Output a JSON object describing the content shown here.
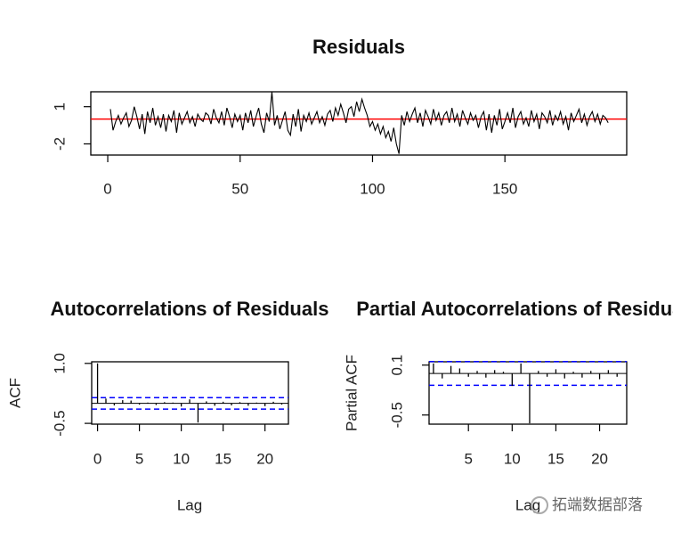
{
  "chart_data": [
    {
      "type": "line",
      "title": "Residuals",
      "color": "#000000",
      "hline": 0,
      "hline_color": "#ff0000",
      "x": [
        1,
        2,
        3,
        4,
        5,
        6,
        7,
        8,
        9,
        10,
        11,
        12,
        13,
        14,
        15,
        16,
        17,
        18,
        19,
        20,
        21,
        22,
        23,
        24,
        25,
        26,
        27,
        28,
        29,
        30,
        31,
        32,
        33,
        34,
        35,
        36,
        37,
        38,
        39,
        40,
        41,
        42,
        43,
        44,
        45,
        46,
        47,
        48,
        49,
        50,
        51,
        52,
        53,
        54,
        55,
        56,
        57,
        58,
        59,
        60,
        61,
        62,
        63,
        64,
        65,
        66,
        67,
        68,
        69,
        70,
        71,
        72,
        73,
        74,
        75,
        76,
        77,
        78,
        79,
        80,
        81,
        82,
        83,
        84,
        85,
        86,
        87,
        88,
        89,
        90,
        91,
        92,
        93,
        94,
        95,
        96,
        97,
        98,
        99,
        100,
        101,
        102,
        103,
        104,
        105,
        106,
        107,
        108,
        109,
        110,
        111,
        112,
        113,
        114,
        115,
        116,
        117,
        118,
        119,
        120,
        121,
        122,
        123,
        124,
        125,
        126,
        127,
        128,
        129,
        130,
        131,
        132,
        133,
        134,
        135,
        136,
        137,
        138,
        139,
        140,
        141,
        142,
        143,
        144,
        145,
        146,
        147,
        148,
        149,
        150,
        151,
        152,
        153,
        154,
        155,
        156,
        157,
        158,
        159,
        160,
        161,
        162,
        163,
        164,
        165,
        166,
        167,
        168,
        169,
        170,
        171,
        172,
        173,
        174,
        175,
        176,
        177,
        178,
        179,
        180,
        181,
        182,
        183,
        184,
        185,
        186,
        187,
        188,
        189
      ],
      "values": [
        0.8,
        -0.9,
        -0.2,
        0.3,
        -0.4,
        0.1,
        0.5,
        -0.6,
        -0.1,
        1.0,
        0.2,
        -0.8,
        0.4,
        -1.2,
        0.6,
        -0.3,
        0.9,
        -0.5,
        0.2,
        -0.7,
        0.4,
        -1.0,
        0.3,
        -0.2,
        0.7,
        -1.1,
        0.5,
        -0.4,
        0.1,
        0.6,
        -0.3,
        0.2,
        -0.6,
        0.4,
        0.0,
        -0.2,
        0.5,
        0.3,
        -0.4,
        0.8,
        0.1,
        -0.3,
        0.6,
        -0.5,
        0.9,
        0.2,
        -0.7,
        0.4,
        -0.2,
        0.3,
        -0.9,
        0.5,
        -0.3,
        0.7,
        -0.6,
        0.2,
        0.9,
        -0.4,
        -1.1,
        0.5,
        -0.2,
        2.2,
        -0.5,
        0.3,
        -0.8,
        -0.1,
        0.6,
        -0.9,
        -1.3,
        0.4,
        -0.6,
        0.8,
        -1.0,
        0.3,
        -0.2,
        0.5,
        -0.4,
        0.1,
        0.6,
        -0.3,
        0.2,
        -0.5,
        0.4,
        0.7,
        -0.2,
        0.9,
        0.3,
        1.2,
        0.5,
        -0.3,
        0.8,
        1.0,
        0.2,
        1.4,
        0.6,
        1.6,
        0.9,
        0.3,
        -0.6,
        -0.2,
        -0.9,
        -0.4,
        -1.2,
        -0.6,
        -1.5,
        -1.0,
        -1.8,
        -0.7,
        -2.0,
        -2.8,
        0.3,
        -0.5,
        0.6,
        -0.2,
        0.4,
        0.9,
        -0.3,
        0.5,
        -0.6,
        0.7,
        0.2,
        -0.4,
        0.8,
        -0.1,
        0.5,
        -0.5,
        0.3,
        0.6,
        -0.3,
        0.9,
        -0.2,
        0.4,
        -0.6,
        0.7,
        0.1,
        -0.4,
        0.5,
        -0.1,
        0.3,
        -0.7,
        0.2,
        0.6,
        -0.9,
        0.4,
        -1.1,
        0.3,
        -0.5,
        0.8,
        -0.8,
        -0.2,
        0.5,
        -0.3,
        0.9,
        -0.7,
        0.2,
        0.6,
        -0.4,
        0.1,
        -0.6,
        0.7,
        -0.2,
        0.4,
        -0.8,
        0.5,
        0.2,
        -0.3,
        0.7,
        -0.5,
        0.3,
        -0.1,
        0.6,
        -0.4,
        0.2,
        -0.9,
        0.5,
        -0.2,
        0.3,
        0.8,
        -0.3,
        0.4,
        -0.5,
        0.2,
        0.6,
        -0.2,
        0.4,
        -0.4,
        0.3,
        0.1,
        -0.3
      ],
      "xlim": [
        -6.4,
        196
      ],
      "ylim": [
        -2.9,
        2.2
      ],
      "xticks": [
        0,
        50,
        100,
        150
      ],
      "yticks": [
        -2,
        1
      ]
    },
    {
      "type": "stem",
      "title": "Autocorrelations of Residuals",
      "x_label": "Lag",
      "y_label": "ACF",
      "color": "#000000",
      "ci": 0.143,
      "ci_color": "#0000ff",
      "x": [
        0,
        1,
        2,
        3,
        4,
        5,
        6,
        7,
        8,
        9,
        10,
        11,
        12,
        13,
        14,
        15,
        16,
        17,
        18,
        19,
        20,
        21,
        22
      ],
      "values": [
        1,
        0.12,
        -0.05,
        0.08,
        0.07,
        -0.03,
        0.02,
        -0.04,
        0.03,
        0.02,
        -0.08,
        0.1,
        -0.48,
        0.05,
        -0.06,
        0.04,
        -0.05,
        0.03,
        -0.06,
        0.02,
        -0.07,
        0.04,
        -0.03
      ],
      "xlim": [
        -0.7,
        22.8
      ],
      "ylim": [
        -0.52,
        1.04
      ],
      "xticks": [
        0,
        5,
        10,
        15,
        20
      ],
      "yticks": [
        -0.5,
        {
          "value": 1,
          "label": "1.0"
        }
      ]
    },
    {
      "type": "stem",
      "title": "Partial Autocorrelations of Residuals",
      "x_label": "Lag",
      "y_label": "Partial ACF",
      "color": "#000000",
      "ci": 0.143,
      "ci_color": "#0000ff",
      "x": [
        1,
        2,
        3,
        4,
        5,
        6,
        7,
        8,
        9,
        10,
        11,
        12,
        13,
        14,
        15,
        16,
        17,
        18,
        19,
        20,
        21,
        22
      ],
      "values": [
        0.12,
        -0.06,
        0.09,
        0.06,
        -0.04,
        0.03,
        -0.05,
        0.04,
        0.02,
        -0.15,
        0.12,
        -0.6,
        0.03,
        -0.04,
        0.05,
        -0.06,
        0.02,
        -0.05,
        0.03,
        -0.07,
        0.04,
        -0.04
      ],
      "xlim": [
        0.5,
        23.1
      ],
      "ylim": [
        -0.61,
        0.14
      ],
      "xticks": [
        5,
        10,
        15,
        20
      ],
      "yticks": [
        -0.5,
        0.1
      ]
    }
  ],
  "watermark": "拓端数据部落"
}
